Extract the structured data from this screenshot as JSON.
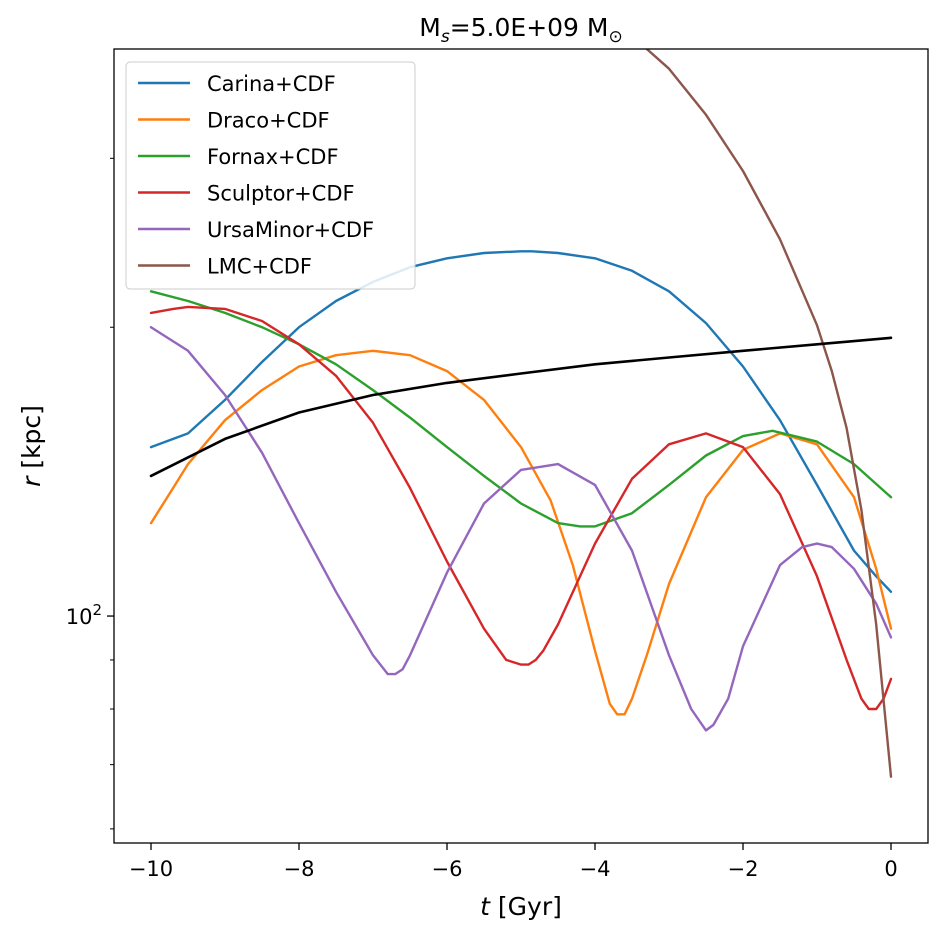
{
  "chart_data": {
    "type": "line",
    "title": {
      "main": "M",
      "sub": "s",
      "rest": "=5.0E+09 M",
      "sun": "⊙"
    },
    "xlabel": {
      "var": "t",
      "unit": " [Gyr]"
    },
    "ylabel": {
      "var": "r",
      "unit": " [kpc]"
    },
    "xlim": [
      -10.5,
      0.5
    ],
    "ylim": [
      58,
      390
    ],
    "yscale": "log",
    "xticks": [
      {
        "value": -10,
        "label": "−10"
      },
      {
        "value": -8,
        "label": "−8"
      },
      {
        "value": -6,
        "label": "−6"
      },
      {
        "value": -4,
        "label": "−4"
      },
      {
        "value": -2,
        "label": "−2"
      },
      {
        "value": 0,
        "label": "0"
      }
    ],
    "yticks_major": [
      {
        "value": 100,
        "base": "10",
        "exp": "2"
      }
    ],
    "yticks_minor": [
      60,
      70,
      80,
      90,
      200,
      300
    ],
    "legend_position": "upper-left",
    "series": [
      {
        "name": "Carina+CDF",
        "color": "#1f77b4",
        "x": [
          -10,
          -9.5,
          -9,
          -8.5,
          -8,
          -7.5,
          -7,
          -6.5,
          -6,
          -5.5,
          -5,
          -4.85,
          -4.5,
          -4,
          -3.5,
          -3,
          -2.5,
          -2,
          -1.5,
          -1,
          -0.5,
          -0.2,
          0
        ],
        "y": [
          150,
          155,
          168,
          184,
          200,
          213,
          223,
          231,
          236,
          239,
          240,
          240,
          239,
          236,
          229,
          218,
          202,
          182,
          160,
          137,
          117,
          110,
          106
        ]
      },
      {
        "name": "Draco+CDF",
        "color": "#ff7f0e",
        "x": [
          -10,
          -9.7,
          -9.5,
          -9,
          -8.5,
          -8,
          -7.5,
          -7,
          -6.5,
          -6,
          -5.5,
          -5,
          -4.6,
          -4.3,
          -4,
          -3.8,
          -3.7,
          -3.6,
          -3.5,
          -3.3,
          -3,
          -2.5,
          -2,
          -1.5,
          -1,
          -0.5,
          -0.2,
          0
        ],
        "y": [
          125,
          136,
          144,
          160,
          172,
          182,
          187,
          189,
          187,
          180,
          168,
          150,
          132,
          113,
          92,
          81,
          79,
          79,
          82,
          91,
          108,
          133,
          149,
          155,
          151,
          133,
          112,
          97
        ]
      },
      {
        "name": "Fornax+CDF",
        "color": "#2ca02c",
        "x": [
          -10,
          -9.5,
          -9,
          -8.5,
          -8,
          -7.5,
          -7,
          -6.5,
          -6,
          -5.5,
          -5,
          -4.5,
          -4.2,
          -4,
          -3.5,
          -3,
          -2.5,
          -2,
          -1.6,
          -1,
          -0.5,
          0
        ],
        "y": [
          218,
          213,
          207,
          200,
          192,
          183,
          172,
          161,
          150,
          140,
          131,
          125,
          124,
          124,
          128,
          137,
          147,
          154,
          156,
          152,
          144,
          133
        ]
      },
      {
        "name": "Sculptor+CDF",
        "color": "#d62728",
        "x": [
          -10,
          -9.7,
          -9.5,
          -9,
          -8.5,
          -8,
          -7.5,
          -7,
          -6.5,
          -6,
          -5.5,
          -5.2,
          -5,
          -4.9,
          -4.8,
          -4.7,
          -4.5,
          -4,
          -3.5,
          -3,
          -2.5,
          -2,
          -1.5,
          -1,
          -0.6,
          -0.4,
          -0.3,
          -0.2,
          -0.1,
          0
        ],
        "y": [
          207,
          209,
          210,
          209,
          203,
          192,
          178,
          159,
          136,
          114,
          97,
          90,
          89,
          89,
          90,
          92,
          98,
          119,
          139,
          151,
          155,
          150,
          134,
          110,
          90,
          82,
          80,
          80,
          82,
          86
        ]
      },
      {
        "name": "UrsaMinor+CDF",
        "color": "#9467bd",
        "x": [
          -10,
          -9.5,
          -9,
          -8.5,
          -8,
          -7.5,
          -7,
          -6.8,
          -6.7,
          -6.6,
          -6.5,
          -6,
          -5.5,
          -5,
          -4.5,
          -4,
          -3.5,
          -3,
          -2.7,
          -2.5,
          -2.4,
          -2.2,
          -2,
          -1.5,
          -1.2,
          -1,
          -0.8,
          -0.5,
          -0.2,
          0
        ],
        "y": [
          200,
          189,
          170,
          148,
          125,
          106,
          91,
          87,
          87,
          88,
          91,
          111,
          131,
          142,
          144,
          137,
          117,
          91,
          80,
          76,
          77,
          82,
          93,
          113,
          118,
          119,
          118,
          112,
          103,
          95
        ]
      },
      {
        "name": "LMC+CDF",
        "color": "#8c564b",
        "x": [
          -3.3,
          -3,
          -2.5,
          -2,
          -1.5,
          -1,
          -0.8,
          -0.6,
          -0.4,
          -0.2,
          0
        ],
        "y": [
          390,
          372,
          333,
          291,
          247,
          201,
          180,
          157,
          129,
          98,
          68
        ]
      },
      {
        "name": "",
        "color": "#000000",
        "x": [
          -10,
          -9,
          -8,
          -7,
          -6,
          -5,
          -4,
          -3,
          -2,
          -1,
          0
        ],
        "y": [
          140,
          153,
          163,
          170,
          175,
          179,
          183,
          186,
          189,
          192,
          195
        ]
      }
    ]
  }
}
